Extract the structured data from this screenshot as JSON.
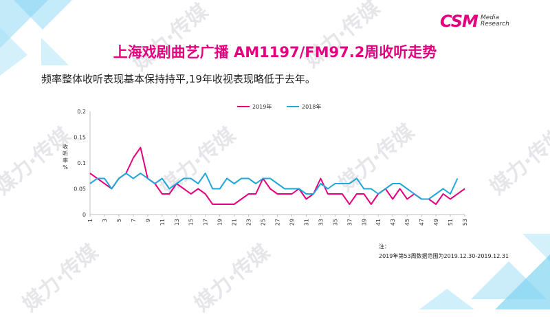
{
  "slide": {
    "title": "上海戏剧曲艺广播 AM1197/FM97.2周收听走势",
    "subtitle": "频率整体收听表现基本保持持平,19年收视表现略低于去年。",
    "note_label": "注：",
    "note_text": "2019年第53周数据范围为2019.12.30-2019.12.31",
    "watermark": "媒力·传媒",
    "logo": {
      "main": "CSM",
      "sub_line1": "Media",
      "sub_line2": "Research"
    }
  },
  "colors": {
    "brand": "#e4007f",
    "series_2019": "#e4007f",
    "series_2018": "#21a6d9",
    "axis": "#bfbfbf",
    "deco_blue": "#4fc3ee"
  },
  "chart_data": {
    "type": "line",
    "ylabel": "收听率%",
    "xlabel": "",
    "ylim": [
      0,
      0.2
    ],
    "yticks": [
      0,
      0.05,
      0.1,
      0.15,
      0.2
    ],
    "ytick_labels": [
      "0",
      "0.05",
      "0.1",
      "0.15",
      "0.2"
    ],
    "x": [
      1,
      2,
      3,
      4,
      5,
      6,
      7,
      8,
      9,
      10,
      11,
      12,
      13,
      14,
      15,
      16,
      17,
      18,
      19,
      20,
      21,
      22,
      23,
      24,
      25,
      26,
      27,
      28,
      29,
      30,
      31,
      32,
      33,
      34,
      35,
      36,
      37,
      38,
      39,
      40,
      41,
      42,
      43,
      44,
      45,
      46,
      47,
      48,
      49,
      50,
      51,
      52,
      53
    ],
    "xtick_labels": [
      "1",
      "3",
      "5",
      "7",
      "9",
      "11",
      "13",
      "15",
      "17",
      "19",
      "21",
      "23",
      "25",
      "27",
      "29",
      "31",
      "33",
      "35",
      "37",
      "39",
      "41",
      "43",
      "45",
      "47",
      "49",
      "51",
      "53"
    ],
    "legend_position": "top",
    "grid": false,
    "series": [
      {
        "name": "2019年",
        "values": [
          0.08,
          0.07,
          0.06,
          0.05,
          0.07,
          0.08,
          0.11,
          0.13,
          0.07,
          0.06,
          0.04,
          0.04,
          0.06,
          0.05,
          0.04,
          0.05,
          0.04,
          0.02,
          0.02,
          0.02,
          0.02,
          0.03,
          0.04,
          0.04,
          0.07,
          0.05,
          0.04,
          0.04,
          0.04,
          0.05,
          0.03,
          0.04,
          0.07,
          0.04,
          0.04,
          0.04,
          0.02,
          0.04,
          0.04,
          0.02,
          0.04,
          0.05,
          0.03,
          0.05,
          0.03,
          0.04,
          0.03,
          0.03,
          0.02,
          0.04,
          0.03,
          0.04,
          0.05
        ]
      },
      {
        "name": "2018年",
        "values": [
          0.06,
          0.07,
          0.07,
          0.05,
          0.07,
          0.08,
          0.07,
          0.08,
          0.07,
          0.06,
          0.07,
          0.05,
          0.06,
          0.07,
          0.07,
          0.06,
          0.08,
          0.05,
          0.05,
          0.07,
          0.06,
          0.07,
          0.07,
          0.06,
          0.07,
          0.07,
          0.06,
          0.05,
          0.05,
          0.05,
          0.04,
          0.04,
          0.06,
          0.05,
          0.06,
          0.06,
          0.06,
          0.07,
          0.05,
          0.05,
          0.04,
          0.05,
          0.06,
          0.06,
          0.05,
          0.04,
          0.03,
          0.03,
          0.04,
          0.05,
          0.04,
          0.07,
          null
        ]
      }
    ]
  }
}
